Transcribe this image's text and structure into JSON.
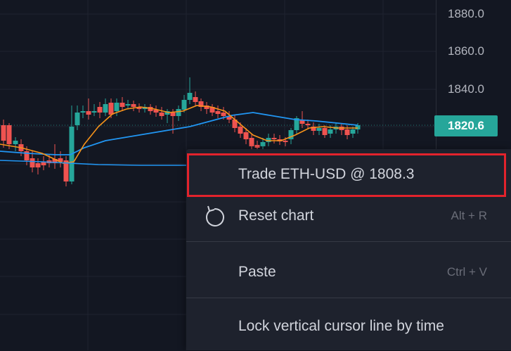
{
  "price_axis": {
    "ticks": [
      "1880.0",
      "1860.0",
      "1840.0"
    ],
    "current_price": "1820.6"
  },
  "colors": {
    "up": "#26a69a",
    "down": "#ef5350",
    "ma_fast": "#f7931a",
    "ma_slow": "#2196f3",
    "highlight": "#e3232c"
  },
  "context_menu": {
    "trade": {
      "label": "Trade ETH-USD @ 1808.3"
    },
    "reset": {
      "label": "Reset chart",
      "shortcut": "Alt + R",
      "icon": "reset-icon"
    },
    "paste": {
      "label": "Paste",
      "shortcut": "Ctrl + V"
    },
    "lock": {
      "label": "Lock vertical cursor line by time"
    }
  }
}
